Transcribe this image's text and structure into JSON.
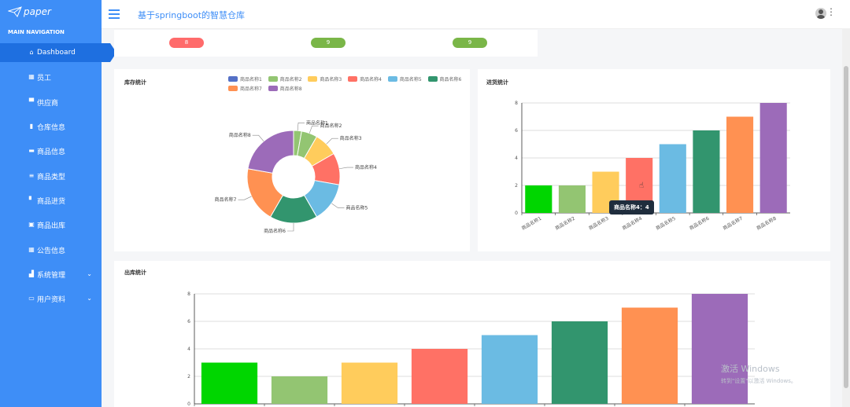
{
  "sidebar": {
    "logo_text": "paper",
    "nav_title": "MAIN NAVIGATION",
    "items": [
      {
        "label": "Dashboard",
        "icon": "home-icon"
      },
      {
        "label": "员工",
        "icon": "grid-icon"
      },
      {
        "label": "供应商",
        "icon": "monitor-icon"
      },
      {
        "label": "仓库信息",
        "icon": "building-icon"
      },
      {
        "label": "商品信息",
        "icon": "card-icon"
      },
      {
        "label": "商品类型",
        "icon": "list-icon"
      },
      {
        "label": "商品进货",
        "icon": "chat-icon"
      },
      {
        "label": "商品出库",
        "icon": "package-icon"
      },
      {
        "label": "公告信息",
        "icon": "grid-icon"
      },
      {
        "label": "系统管理",
        "icon": "bar-chart-icon"
      },
      {
        "label": "用户资料",
        "icon": "calendar-icon"
      }
    ]
  },
  "header": {
    "title": "基于springboot的智慧仓库"
  },
  "stats": [
    "8",
    "9",
    "9"
  ],
  "colors": [
    "#00d600",
    "#93c572",
    "#ffcc5c",
    "#ff7165",
    "#6bbbe3",
    "#32956e",
    "#ff9152",
    "#9c6bb9"
  ],
  "inventory": {
    "title": "库存统计"
  },
  "purchase": {
    "title": "进货统计"
  },
  "outbound": {
    "title": "出库统计"
  },
  "chart_data": [
    {
      "type": "pie",
      "title": "库存统计",
      "categories": [
        "商品名称1",
        "商品名称2",
        "商品名称3",
        "商品名称4",
        "商品名称5",
        "商品名称6",
        "商品名称7",
        "商品名称8"
      ],
      "values": [
        1,
        2,
        3,
        4,
        5,
        6,
        7,
        8
      ],
      "donut": true,
      "legend": "top-right",
      "legend_colors": [
        "#5470c6",
        "#93c572",
        "#ffcc5c",
        "#ff7165",
        "#6bbbe3",
        "#32956e",
        "#ff9152",
        "#9c6bb9"
      ],
      "slice_colors": [
        "#93c572",
        "#93c572",
        "#ffcc5c",
        "#ff7165",
        "#6bbbe3",
        "#32956e",
        "#ff9152",
        "#9c6bb9"
      ]
    },
    {
      "type": "bar",
      "title": "进货统计",
      "categories": [
        "商品名称1",
        "商品名称2",
        "商品名称3",
        "商品名称4",
        "商品名称5",
        "商品名称6",
        "商品名称7",
        "商品名称8"
      ],
      "values": [
        2,
        2,
        3,
        4,
        5,
        6,
        7,
        8
      ],
      "ylim": [
        0,
        8
      ],
      "yticks": [
        0,
        2,
        4,
        6,
        8
      ],
      "grid": true,
      "tooltip": "商品名称4：4"
    },
    {
      "type": "bar",
      "title": "出库统计",
      "values": [
        3,
        2,
        3,
        4,
        5,
        6,
        7,
        8
      ],
      "ylim": [
        0,
        8
      ],
      "yticks": [
        0,
        2,
        4,
        6,
        8
      ],
      "grid": true
    }
  ],
  "watermark": {
    "line1": "激活 Windows",
    "line2": "转到\"设置\"以激活 Windows。"
  }
}
